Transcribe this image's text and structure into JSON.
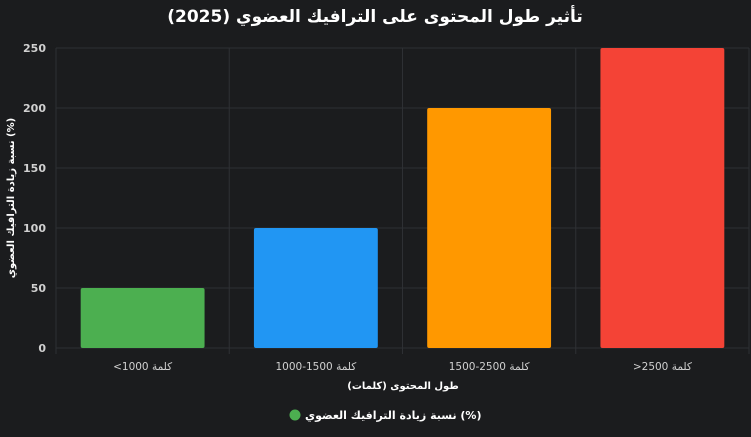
{
  "chart_data": {
    "type": "bar",
    "title": "تأثير طول المحتوى على الترافيك العضوي (2025)",
    "xlabel": "طول المحتوى (كلمات)",
    "ylabel": "نسبة زيادة الترافيك العضوي (%)",
    "categories": [
      "<1000 كلمة",
      "1000-1500 كلمة",
      "1500-2500 كلمة",
      ">2500 كلمة"
    ],
    "series": [
      {
        "name": "نسبة زيادة الترافيك العضوي (%)",
        "values": [
          50,
          100,
          200,
          250
        ]
      }
    ],
    "bar_colors": [
      "#4caf50",
      "#2196f3",
      "#ff9800",
      "#f44336"
    ],
    "legend_color": "#4caf50",
    "ylim": [
      0,
      250
    ],
    "yticks": [
      0,
      50,
      100,
      150,
      200,
      250
    ],
    "grid": true,
    "legend_position": "bottom"
  }
}
